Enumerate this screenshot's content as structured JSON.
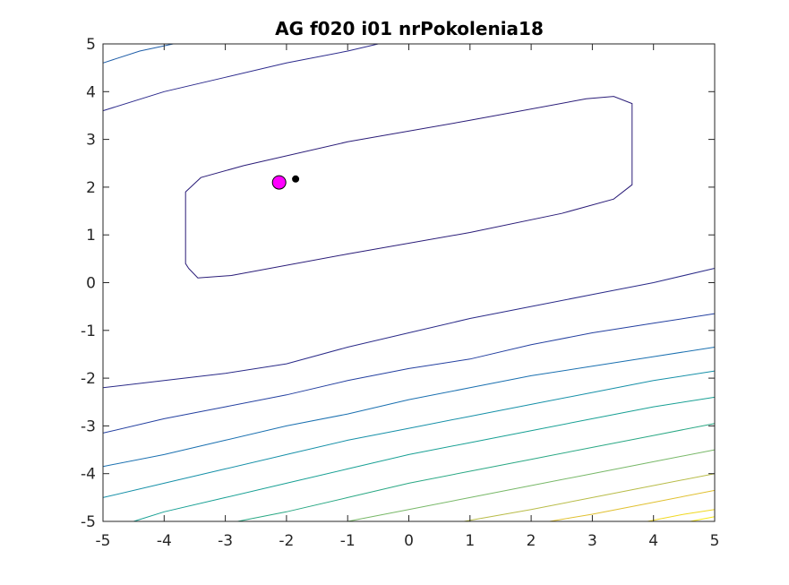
{
  "chart_data": {
    "type": "contour",
    "title": "AG f020 i01 nrPokolenia18",
    "xlabel": "",
    "ylabel": "",
    "xlim": [
      -5,
      5
    ],
    "ylim": [
      -5,
      5
    ],
    "x_ticks": [
      -5,
      -4,
      -3,
      -2,
      -1,
      0,
      1,
      2,
      3,
      4,
      5
    ],
    "y_ticks": [
      -5,
      -4,
      -3,
      -2,
      -1,
      0,
      1,
      2,
      3,
      4,
      5
    ],
    "grid": false,
    "contours": [
      {
        "color": "#2a1c78",
        "points": [
          [
            -3.6,
            0.3
          ],
          [
            -3.45,
            0.1
          ],
          [
            -2.9,
            0.15
          ],
          [
            -1.0,
            0.6
          ],
          [
            1.0,
            1.05
          ],
          [
            2.5,
            1.45
          ],
          [
            3.35,
            1.75
          ],
          [
            3.65,
            2.05
          ],
          [
            3.65,
            3.75
          ],
          [
            3.35,
            3.9
          ],
          [
            2.9,
            3.85
          ],
          [
            1.0,
            3.4
          ],
          [
            -1.0,
            2.95
          ],
          [
            -2.7,
            2.45
          ],
          [
            -3.4,
            2.2
          ],
          [
            -3.65,
            1.9
          ],
          [
            -3.65,
            0.4
          ],
          [
            -3.6,
            0.3
          ]
        ]
      },
      {
        "color": "#2c2a8c",
        "points": [
          [
            -5.0,
            3.6
          ],
          [
            -4.0,
            4.0
          ],
          [
            -3.0,
            4.3
          ],
          [
            -2.0,
            4.6
          ],
          [
            -1.0,
            4.85
          ],
          [
            -0.5,
            5.0
          ]
        ]
      },
      {
        "color": "#1f5ea8",
        "points": [
          [
            -5.0,
            4.6
          ],
          [
            -4.4,
            4.85
          ],
          [
            -3.85,
            5.0
          ]
        ]
      },
      {
        "color": "#2a2a88",
        "points": [
          [
            -5.0,
            -2.2
          ],
          [
            -4.0,
            -2.05
          ],
          [
            -3.0,
            -1.9
          ],
          [
            -2.0,
            -1.7
          ],
          [
            -1.0,
            -1.35
          ],
          [
            0.0,
            -1.05
          ],
          [
            1.0,
            -0.75
          ],
          [
            2.0,
            -0.5
          ],
          [
            3.0,
            -0.25
          ],
          [
            4.0,
            0.0
          ],
          [
            5.0,
            0.3
          ]
        ]
      },
      {
        "color": "#2440a0",
        "points": [
          [
            -5.0,
            -3.15
          ],
          [
            -4.0,
            -2.85
          ],
          [
            -3.0,
            -2.6
          ],
          [
            -2.0,
            -2.35
          ],
          [
            -1.0,
            -2.05
          ],
          [
            0.0,
            -1.8
          ],
          [
            1.0,
            -1.6
          ],
          [
            2.0,
            -1.3
          ],
          [
            3.0,
            -1.05
          ],
          [
            4.0,
            -0.85
          ],
          [
            5.0,
            -0.65
          ]
        ]
      },
      {
        "color": "#1a70b0",
        "points": [
          [
            -5.0,
            -3.85
          ],
          [
            -4.0,
            -3.6
          ],
          [
            -3.0,
            -3.3
          ],
          [
            -2.0,
            -3.0
          ],
          [
            -1.0,
            -2.75
          ],
          [
            0.0,
            -2.45
          ],
          [
            1.0,
            -2.2
          ],
          [
            2.0,
            -1.95
          ],
          [
            3.0,
            -1.75
          ],
          [
            4.0,
            -1.55
          ],
          [
            5.0,
            -1.35
          ]
        ]
      },
      {
        "color": "#1690a8",
        "points": [
          [
            -5.0,
            -4.5
          ],
          [
            -4.0,
            -4.2
          ],
          [
            -3.0,
            -3.9
          ],
          [
            -2.0,
            -3.6
          ],
          [
            -1.0,
            -3.3
          ],
          [
            0.0,
            -3.05
          ],
          [
            1.0,
            -2.8
          ],
          [
            2.0,
            -2.55
          ],
          [
            3.0,
            -2.3
          ],
          [
            4.0,
            -2.05
          ],
          [
            5.0,
            -1.85
          ]
        ]
      },
      {
        "color": "#18a094",
        "points": [
          [
            -4.5,
            -5.0
          ],
          [
            -4.0,
            -4.8
          ],
          [
            -3.0,
            -4.5
          ],
          [
            -2.0,
            -4.2
          ],
          [
            -1.0,
            -3.9
          ],
          [
            0.0,
            -3.6
          ],
          [
            1.0,
            -3.35
          ],
          [
            2.0,
            -3.1
          ],
          [
            3.0,
            -2.85
          ],
          [
            4.0,
            -2.6
          ],
          [
            5.0,
            -2.4
          ]
        ]
      },
      {
        "color": "#2aa884",
        "points": [
          [
            -2.8,
            -5.0
          ],
          [
            -2.0,
            -4.8
          ],
          [
            -1.0,
            -4.5
          ],
          [
            0.0,
            -4.2
          ],
          [
            1.0,
            -3.95
          ],
          [
            2.0,
            -3.7
          ],
          [
            3.0,
            -3.45
          ],
          [
            4.0,
            -3.2
          ],
          [
            5.0,
            -2.95
          ]
        ]
      },
      {
        "color": "#78b868",
        "points": [
          [
            -1.0,
            -5.0
          ],
          [
            0.0,
            -4.75
          ],
          [
            1.0,
            -4.5
          ],
          [
            2.0,
            -4.25
          ],
          [
            3.0,
            -4.0
          ],
          [
            4.0,
            -3.75
          ],
          [
            5.0,
            -3.5
          ]
        ]
      },
      {
        "color": "#b8bc48",
        "points": [
          [
            0.9,
            -5.0
          ],
          [
            2.0,
            -4.75
          ],
          [
            3.0,
            -4.5
          ],
          [
            4.0,
            -4.25
          ],
          [
            5.0,
            -4.0
          ]
        ]
      },
      {
        "color": "#e0c030",
        "points": [
          [
            2.3,
            -5.0
          ],
          [
            3.0,
            -4.85
          ],
          [
            4.0,
            -4.6
          ],
          [
            5.0,
            -4.35
          ]
        ]
      },
      {
        "color": "#f0d820",
        "points": [
          [
            3.9,
            -5.0
          ],
          [
            4.5,
            -4.85
          ],
          [
            5.0,
            -4.75
          ]
        ]
      },
      {
        "color": "#f8e818",
        "points": [
          [
            4.6,
            -5.0
          ],
          [
            5.0,
            -4.9
          ]
        ]
      }
    ],
    "points": [
      {
        "x": -2.12,
        "y": 2.1,
        "color": "#ff00ff",
        "edge": "#000000",
        "size": 7.5
      },
      {
        "x": -1.85,
        "y": 2.17,
        "color": "#000000",
        "edge": "#000000",
        "size": 3.5
      }
    ]
  }
}
